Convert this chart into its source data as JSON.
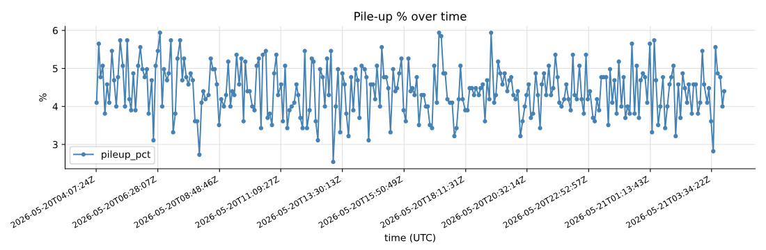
{
  "chart_data": {
    "type": "line",
    "title": "Pile-up % over time",
    "xlabel": "time (UTC)",
    "ylabel": "%",
    "xlim": [
      "2026-05-20T02:56",
      "2026-05-21T05:14"
    ],
    "ylim": [
      2.36,
      6.11
    ],
    "yticks": [
      3,
      4,
      5,
      6
    ],
    "xticks": [
      {
        "value": "2026-05-20T04:07",
        "label": "2026-05-20T04:07:24Z"
      },
      {
        "value": "2026-05-20T06:28",
        "label": "2026-05-20T06:28:07Z"
      },
      {
        "value": "2026-05-20T08:49",
        "label": "2026-05-20T08:48:46Z"
      },
      {
        "value": "2026-05-20T11:09",
        "label": "2026-05-20T11:09:27Z"
      },
      {
        "value": "2026-05-20T13:30",
        "label": "2026-05-20T13:30:13Z"
      },
      {
        "value": "2026-05-20T15:51",
        "label": "2026-05-20T15:50:49Z"
      },
      {
        "value": "2026-05-20T18:12",
        "label": "2026-05-20T18:11:31Z"
      },
      {
        "value": "2026-05-20T20:32",
        "label": "2026-05-20T20:32:14Z"
      },
      {
        "value": "2026-05-20T22:53",
        "label": "2026-05-20T22:52:57Z"
      },
      {
        "value": "2026-05-21T01:14",
        "label": "2026-05-21T01:13:43Z"
      },
      {
        "value": "2026-05-21T03:34",
        "label": "2026-05-21T03:34:22Z"
      }
    ],
    "grid": true,
    "legend": "lower left",
    "marker": "circle",
    "line_style": "solid",
    "series": [
      {
        "name": "pileup_pct",
        "color": "#4682b4",
        "x": [
          "2026-05-20T04:08",
          "2026-05-20T04:13",
          "2026-05-20T04:17",
          "2026-05-20T04:22",
          "2026-05-20T04:27",
          "2026-05-20T04:32",
          "2026-05-20T04:37",
          "2026-05-20T04:43",
          "2026-05-20T04:48",
          "2026-05-20T04:53",
          "2026-05-20T04:57",
          "2026-05-20T05:02",
          "2026-05-20T05:08",
          "2026-05-20T05:13",
          "2026-05-20T05:18",
          "2026-05-20T05:23",
          "2026-05-20T05:27",
          "2026-05-20T05:32",
          "2026-05-20T05:37",
          "2026-05-20T05:43",
          "2026-05-20T05:48",
          "2026-05-20T05:53",
          "2026-05-20T05:58",
          "2026-05-20T06:03",
          "2026-05-20T06:07",
          "2026-05-20T06:14",
          "2026-05-20T06:18",
          "2026-05-20T06:23",
          "2026-05-20T06:28",
          "2026-05-20T06:33",
          "2026-05-20T06:38",
          "2026-05-20T06:42",
          "2026-05-20T06:49",
          "2026-05-20T06:53",
          "2026-05-20T06:58",
          "2026-05-20T07:03",
          "2026-05-20T07:08",
          "2026-05-20T07:13",
          "2026-05-20T07:19",
          "2026-05-20T07:24",
          "2026-05-20T07:28",
          "2026-05-20T07:33",
          "2026-05-20T07:38",
          "2026-05-20T07:43",
          "2026-05-20T07:48",
          "2026-05-20T07:53",
          "2026-05-20T07:58",
          "2026-05-20T08:03",
          "2026-05-20T08:08",
          "2026-05-20T08:12",
          "2026-05-20T08:17",
          "2026-05-20T08:24",
          "2026-05-20T08:29",
          "2026-05-20T08:34",
          "2026-05-20T08:38",
          "2026-05-20T08:43",
          "2026-05-20T08:48",
          "2026-05-20T08:53",
          "2026-05-20T08:59",
          "2026-05-20T09:04",
          "2026-05-20T09:09",
          "2026-05-20T09:14",
          "2026-05-20T09:18",
          "2026-05-20T09:23",
          "2026-05-20T09:28",
          "2026-05-20T09:34",
          "2026-05-20T09:39",
          "2026-05-20T09:44",
          "2026-05-20T09:48",
          "2026-05-20T09:53",
          "2026-05-20T09:58",
          "2026-05-20T10:04",
          "2026-05-20T10:09",
          "2026-05-20T10:14",
          "2026-05-20T10:19",
          "2026-05-20T10:24",
          "2026-05-20T10:28",
          "2026-05-20T10:35",
          "2026-05-20T10:39",
          "2026-05-20T10:44",
          "2026-05-20T10:49",
          "2026-05-20T10:54",
          "2026-05-20T10:59",
          "2026-05-20T11:03",
          "2026-05-20T11:10",
          "2026-05-20T11:14",
          "2026-05-20T11:19",
          "2026-05-20T11:24",
          "2026-05-20T11:29",
          "2026-05-20T11:34",
          "2026-05-20T11:40",
          "2026-05-20T11:45",
          "2026-05-20T11:49",
          "2026-05-20T11:54",
          "2026-05-20T11:59",
          "2026-05-20T12:04",
          "2026-05-20T12:09",
          "2026-05-20T12:15",
          "2026-05-20T12:20",
          "2026-05-20T12:24",
          "2026-05-20T12:29",
          "2026-05-20T12:34",
          "2026-05-20T12:39",
          "2026-05-20T12:45",
          "2026-05-20T12:50",
          "2026-05-20T12:55",
          "2026-05-20T12:59",
          "2026-05-20T13:04",
          "2026-05-20T13:09",
          "2026-05-20T13:15",
          "2026-05-20T13:20",
          "2026-05-20T13:25",
          "2026-05-20T13:30",
          "2026-05-20T13:35",
          "2026-05-20T13:39",
          "2026-05-20T13:44",
          "2026-05-20T13:50",
          "2026-05-20T13:55",
          "2026-05-20T14:00",
          "2026-05-20T14:05",
          "2026-05-20T14:09",
          "2026-05-20T14:14",
          "2026-05-20T14:21",
          "2026-05-20T14:25",
          "2026-05-20T14:30",
          "2026-05-20T14:35",
          "2026-05-20T14:40",
          "2026-05-20T14:45",
          "2026-05-20T14:49",
          "2026-05-20T14:56",
          "2026-05-20T15:00",
          "2026-05-20T15:05",
          "2026-05-20T15:10",
          "2026-05-20T15:15",
          "2026-05-20T15:20",
          "2026-05-20T15:26",
          "2026-05-20T15:31",
          "2026-05-20T15:35",
          "2026-05-20T15:40",
          "2026-05-20T15:45",
          "2026-05-20T15:50",
          "2026-05-20T15:55",
          "2026-05-20T16:01",
          "2026-05-20T16:06",
          "2026-05-20T16:10",
          "2026-05-20T16:15",
          "2026-05-20T16:20",
          "2026-05-20T16:25",
          "2026-05-20T16:31",
          "2026-05-20T16:36",
          "2026-05-20T16:41",
          "2026-05-20T16:45",
          "2026-05-20T16:50",
          "2026-05-20T16:55",
          "2026-05-20T17:00",
          "2026-05-20T17:06",
          "2026-05-20T17:11",
          "2026-05-20T17:16",
          "2026-05-20T17:21",
          "2026-05-20T17:25",
          "2026-05-20T17:30",
          "2026-05-20T17:36",
          "2026-05-20T17:41",
          "2026-05-20T17:46",
          "2026-05-20T17:51",
          "2026-05-20T17:56",
          "2026-05-20T18:00",
          "2026-05-20T18:05",
          "2026-05-20T18:11",
          "2026-05-20T18:16",
          "2026-05-20T18:21",
          "2026-05-20T18:26",
          "2026-05-20T18:31",
          "2026-05-20T18:35",
          "2026-05-20T18:42",
          "2026-05-20T18:46",
          "2026-05-20T18:51",
          "2026-05-20T18:56",
          "2026-05-20T19:01",
          "2026-05-20T19:06",
          "2026-05-20T19:10",
          "2026-05-20T19:17",
          "2026-05-20T19:21",
          "2026-05-20T19:26",
          "2026-05-20T19:31",
          "2026-05-20T19:36",
          "2026-05-20T19:41",
          "2026-05-20T19:47",
          "2026-05-20T19:52",
          "2026-05-20T19:56",
          "2026-05-20T20:01",
          "2026-05-20T20:06",
          "2026-05-20T20:11",
          "2026-05-20T20:17",
          "2026-05-20T20:22",
          "2026-05-20T20:27",
          "2026-05-20T20:31",
          "2026-05-20T20:36",
          "2026-05-20T20:41",
          "2026-05-20T20:46",
          "2026-05-20T20:52",
          "2026-05-20T20:57",
          "2026-05-20T21:02",
          "2026-05-20T21:06",
          "2026-05-20T21:11",
          "2026-05-20T21:16",
          "2026-05-20T21:22",
          "2026-05-20T21:27",
          "2026-05-20T21:32",
          "2026-05-20T21:37",
          "2026-05-20T21:42",
          "2026-05-20T21:46",
          "2026-05-20T21:51",
          "2026-05-20T21:57",
          "2026-05-20T22:02",
          "2026-05-20T22:07",
          "2026-05-20T22:12",
          "2026-05-20T22:17",
          "2026-05-20T22:21",
          "2026-05-20T22:26",
          "2026-05-20T22:32",
          "2026-05-20T22:37",
          "2026-05-20T22:42",
          "2026-05-20T22:47",
          "2026-05-20T22:51",
          "2026-05-20T22:56",
          "2026-05-20T23:03",
          "2026-05-20T23:07",
          "2026-05-20T23:12",
          "2026-05-20T23:17",
          "2026-05-20T23:22",
          "2026-05-20T23:27",
          "2026-05-20T23:33",
          "2026-05-20T23:38",
          "2026-05-20T23:42",
          "2026-05-20T23:47",
          "2026-05-20T23:52",
          "2026-05-20T23:57",
          "2026-05-21T00:02",
          "2026-05-21T00:08",
          "2026-05-21T00:13",
          "2026-05-21T00:17",
          "2026-05-21T00:22",
          "2026-05-21T00:27",
          "2026-05-21T00:32",
          "2026-05-21T00:38",
          "2026-05-21T00:43",
          "2026-05-21T00:48",
          "2026-05-21T00:52",
          "2026-05-21T00:57",
          "2026-05-21T01:02",
          "2026-05-21T01:07",
          "2026-05-21T01:13",
          "2026-05-21T01:18",
          "2026-05-21T01:23",
          "2026-05-21T01:27",
          "2026-05-21T01:32",
          "2026-05-21T01:37",
          "2026-05-21T01:43",
          "2026-05-21T01:48",
          "2026-05-21T01:53",
          "2026-05-21T01:58",
          "2026-05-21T02:02",
          "2026-05-21T02:07",
          "2026-05-21T02:12",
          "2026-05-21T02:18",
          "2026-05-21T02:23",
          "2026-05-21T02:28",
          "2026-05-21T02:33",
          "2026-05-21T02:38",
          "2026-05-21T02:42",
          "2026-05-21T02:49",
          "2026-05-21T02:53",
          "2026-05-21T02:58",
          "2026-05-21T03:03",
          "2026-05-21T03:08",
          "2026-05-21T03:13",
          "2026-05-21T03:17",
          "2026-05-21T03:24",
          "2026-05-21T03:28",
          "2026-05-21T03:33",
          "2026-05-21T03:38",
          "2026-05-21T03:43",
          "2026-05-21T03:48",
          "2026-05-21T03:54",
          "2026-05-21T03:59",
          "2026-05-21T04:03"
        ],
        "values": [
          4.1,
          5.65,
          4.77,
          5.07,
          3.81,
          4.58,
          4.1,
          5.46,
          4.69,
          4.0,
          4.77,
          5.74,
          5.07,
          4.0,
          5.74,
          4.19,
          3.9,
          4.87,
          3.9,
          5.07,
          5.56,
          4.98,
          4.77,
          4.98,
          3.81,
          4.69,
          3.11,
          5.07,
          5.46,
          5.94,
          4.0,
          4.98,
          4.69,
          4.87,
          5.74,
          3.32,
          3.81,
          5.26,
          5.74,
          4.69,
          5.26,
          4.77,
          4.58,
          4.87,
          4.69,
          3.61,
          3.61,
          2.73,
          4.1,
          4.4,
          4.19,
          4.3,
          5.26,
          4.98,
          4.98,
          4.58,
          3.51,
          4.19,
          4.0,
          4.3,
          5.18,
          4.0,
          4.4,
          4.3,
          5.36,
          4.58,
          5.26,
          3.61,
          5.18,
          4.4,
          4.4,
          4.0,
          3.9,
          5.07,
          5.26,
          3.43,
          5.36,
          5.46,
          3.7,
          3.81,
          3.51,
          4.87,
          5.36,
          4.3,
          4.58,
          3.61,
          5.07,
          3.43,
          3.9,
          4.0,
          4.1,
          4.58,
          4.3,
          3.7,
          3.43,
          5.46,
          3.43,
          3.9,
          5.26,
          5.18,
          3.61,
          3.11,
          4.98,
          4.77,
          4.0,
          5.26,
          4.3,
          5.46,
          2.54,
          4.0,
          4.98,
          3.32,
          4.87,
          4.58,
          3.81,
          3.22,
          4.77,
          3.9,
          4.98,
          4.69,
          3.7,
          5.07,
          4.98,
          4.77,
          3.11,
          4.58,
          4.58,
          4.19,
          5.07,
          4.0,
          5.56,
          4.77,
          4.77,
          4.48,
          3.32,
          4.98,
          4.4,
          4.48,
          4.87,
          5.26,
          3.9,
          3.61,
          5.26,
          4.4,
          4.48,
          4.3,
          4.77,
          3.51,
          4.3,
          4.3,
          4.0,
          4.0,
          3.51,
          3.43,
          5.07,
          4.1,
          5.94,
          5.85,
          4.87,
          4.87,
          4.19,
          4.1,
          4.1,
          3.22,
          3.43,
          4.19,
          5.07,
          4.19,
          3.9,
          3.9,
          4.48,
          4.48,
          4.3,
          4.48,
          4.3,
          4.48,
          4.58,
          3.61,
          4.69,
          4.19,
          5.94,
          4.1,
          4.3,
          5.18,
          4.87,
          4.58,
          4.87,
          4.4,
          4.69,
          4.77,
          4.3,
          4.19,
          4.4,
          3.22,
          3.61,
          4.0,
          4.3,
          4.58,
          3.7,
          3.81,
          4.87,
          4.3,
          3.43,
          4.58,
          4.87,
          4.3,
          5.07,
          4.3,
          4.48,
          5.36,
          4.77,
          4.1,
          4.0,
          4.19,
          4.58,
          4.19,
          3.9,
          5.36,
          4.3,
          4.19,
          5.07,
          4.19,
          3.81,
          5.36,
          4.19,
          4.4,
          3.7,
          3.61,
          4.19,
          3.9,
          4.77,
          4.77,
          4.77,
          3.51,
          4.98,
          4.1,
          4.69,
          3.81,
          5.18,
          4.0,
          4.77,
          3.7,
          4.0,
          3.81,
          5.65,
          3.81,
          5.07,
          3.7,
          4.69,
          4.87,
          4.77,
          4.1,
          5.65,
          3.32,
          5.74,
          4.69,
          3.51,
          4.0,
          4.77,
          3.43,
          4.0,
          4.58,
          4.77,
          5.07,
          3.22,
          4.58,
          3.7,
          4.87,
          4.48,
          4.1,
          4.58,
          3.81,
          4.58,
          4.58,
          3.81,
          4.1,
          5.46,
          4.58,
          4.1,
          4.48,
          3.61,
          2.82,
          5.56,
          4.87,
          4.77,
          4.0,
          4.4
        ]
      }
    ]
  }
}
